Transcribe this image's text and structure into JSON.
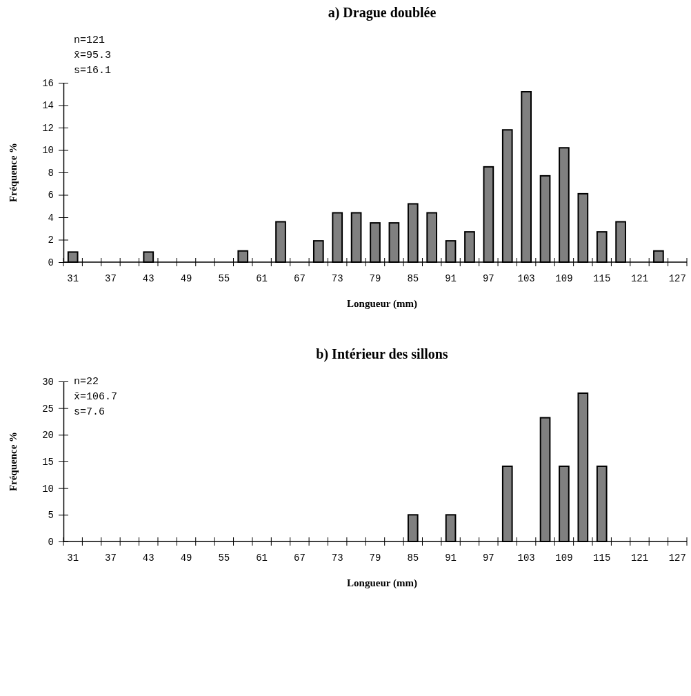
{
  "chart_data": [
    {
      "type": "bar",
      "title": "a) Drague doublée",
      "xlabel": "Longueur (mm)",
      "ylabel": "Fréquence %",
      "annotations": [
        "n=121",
        "x̄=95.3",
        "s=16.1"
      ],
      "categories": [
        "31",
        null,
        "37",
        null,
        "43",
        null,
        "49",
        null,
        "55",
        null,
        "61",
        null,
        "67",
        null,
        "73",
        null,
        "79",
        null,
        "85",
        null,
        "91",
        null,
        "97",
        null,
        "103",
        null,
        "109",
        null,
        "115",
        null,
        "121",
        null,
        "127"
      ],
      "values": [
        0.9,
        0,
        0,
        0,
        0.9,
        0,
        0,
        0,
        0,
        1.0,
        0,
        3.6,
        0,
        1.9,
        4.4,
        4.4,
        3.5,
        3.5,
        5.2,
        4.4,
        1.9,
        2.7,
        8.5,
        11.8,
        15.2,
        7.7,
        10.2,
        6.1,
        2.7,
        3.6,
        0,
        1.0,
        0
      ],
      "color": "#808080",
      "ylim": [
        0,
        16
      ],
      "yticks": [
        0,
        2,
        4,
        6,
        8,
        10,
        12,
        14,
        16
      ]
    },
    {
      "type": "bar",
      "title": "b) Intérieur des sillons",
      "xlabel": "Longueur (mm)",
      "ylabel": "Fréquence %",
      "annotations": [
        "n=22",
        "x̄=106.7",
        "s=7.6"
      ],
      "categories": [
        "31",
        null,
        "37",
        null,
        "43",
        null,
        "49",
        null,
        "55",
        null,
        "61",
        null,
        "67",
        null,
        "73",
        null,
        "79",
        null,
        "85",
        null,
        "91",
        null,
        "97",
        null,
        "103",
        null,
        "109",
        null,
        "115",
        null,
        "121",
        null,
        "127"
      ],
      "values": [
        0,
        0,
        0,
        0,
        0,
        0,
        0,
        0,
        0,
        0,
        0,
        0,
        0,
        0,
        0,
        0,
        0,
        0,
        5.0,
        0,
        5.0,
        0,
        0,
        14.1,
        0,
        23.2,
        14.1,
        27.8,
        14.1,
        0,
        0,
        0,
        0
      ],
      "color": "#808080",
      "ylim": [
        0,
        30
      ],
      "yticks": [
        0,
        5,
        10,
        15,
        20,
        25,
        30
      ]
    }
  ]
}
